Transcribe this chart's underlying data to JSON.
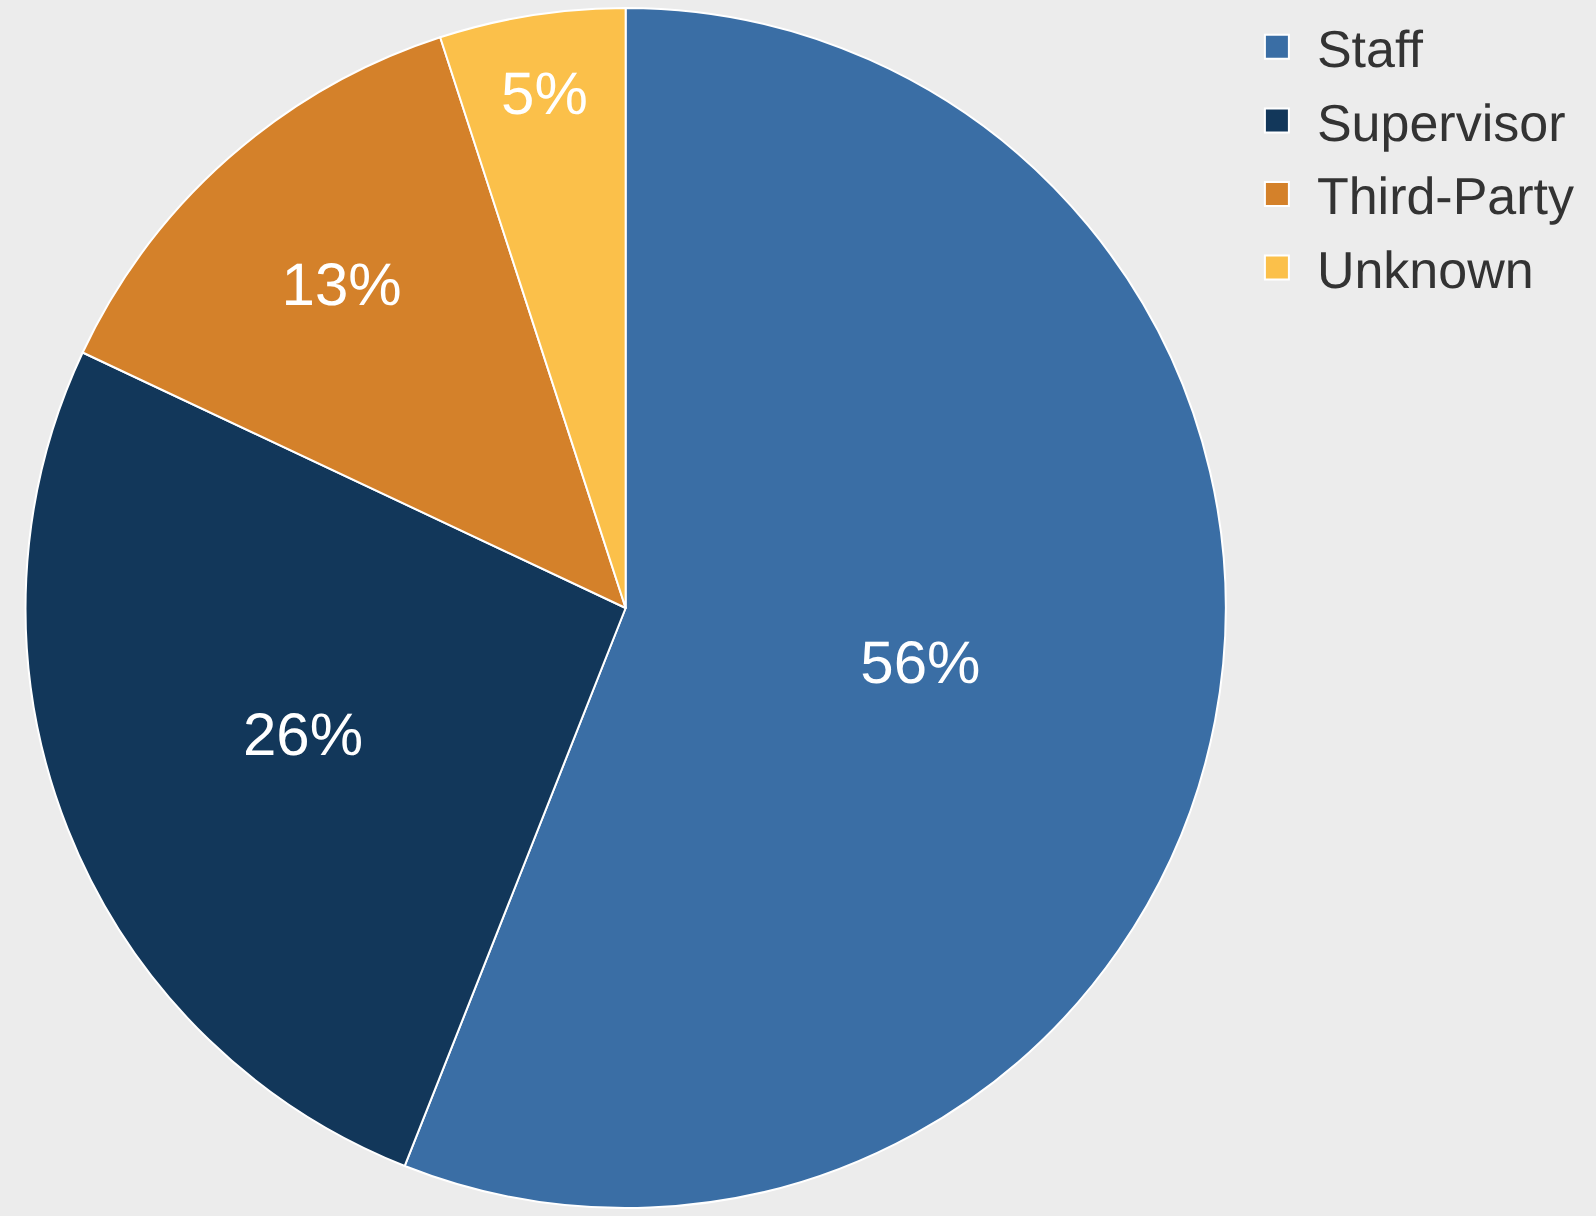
{
  "chart_data": {
    "type": "pie",
    "categories": [
      "Staff",
      "Supervisor",
      "Third-Party",
      "Unknown"
    ],
    "values": [
      56,
      26,
      13,
      5
    ],
    "colors": [
      "#3a6ea5",
      "#12375a",
      "#d4812a",
      "#fbc04a"
    ],
    "value_labels": [
      "56%",
      "26%",
      "13%",
      "5%"
    ],
    "legend": "top right"
  }
}
